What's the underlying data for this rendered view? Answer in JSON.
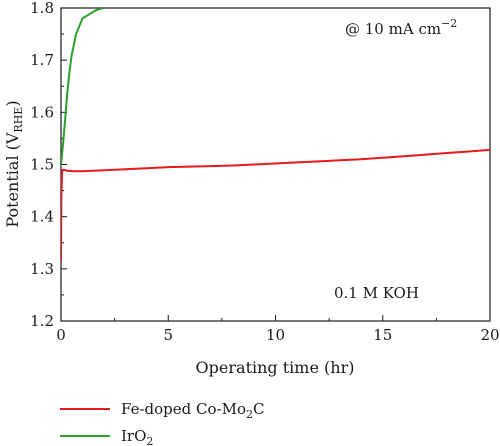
{
  "chart_data": {
    "type": "line",
    "xlabel": "Operating time (hr)",
    "ylabel_main": "Potential (V",
    "ylabel_sub": "RHE",
    "ylabel_close": ")",
    "xlim": [
      0,
      20
    ],
    "ylim": [
      1.2,
      1.8
    ],
    "x_ticks": [
      0,
      5,
      10,
      15,
      20
    ],
    "x_tick_labels": [
      "0",
      "5",
      "10",
      "15",
      "20"
    ],
    "y_ticks": [
      1.2,
      1.3,
      1.4,
      1.5,
      1.6,
      1.7,
      1.8
    ],
    "y_tick_labels": [
      "1.2",
      "1.3",
      "1.4",
      "1.5",
      "1.6",
      "1.7",
      "1.8"
    ],
    "grid": false,
    "legend_position": "below-left",
    "annotation_top": {
      "prefix": "@ 10 mA cm",
      "sup": "−2"
    },
    "annotation_bottom": "0.1 M KOH",
    "series": [
      {
        "name_main": "Fe-doped Co-Mo",
        "name_sub": "2",
        "name_tail": "C",
        "color": "#e41a1c",
        "x": [
          0.0,
          0.02,
          0.05,
          0.1,
          0.3,
          0.6,
          1.0,
          2,
          3,
          4,
          5,
          6,
          7,
          8,
          9,
          10,
          11,
          12,
          13,
          14,
          15,
          16,
          17,
          18,
          19,
          20
        ],
        "y": [
          1.315,
          1.44,
          1.487,
          1.49,
          1.488,
          1.487,
          1.487,
          1.489,
          1.491,
          1.493,
          1.495,
          1.496,
          1.497,
          1.498,
          1.5,
          1.502,
          1.504,
          1.506,
          1.508,
          1.51,
          1.513,
          1.516,
          1.519,
          1.522,
          1.525,
          1.528
        ]
      },
      {
        "name_main": "IrO",
        "name_sub": "2",
        "name_tail": "",
        "color": "#2ca02c",
        "x": [
          0.0,
          0.1,
          0.2,
          0.3,
          0.4,
          0.5,
          0.6,
          0.7,
          0.8,
          0.9,
          1.0,
          1.2,
          1.4,
          1.6,
          1.8,
          2.0
        ],
        "y": [
          1.5,
          1.54,
          1.59,
          1.64,
          1.68,
          1.71,
          1.73,
          1.75,
          1.76,
          1.77,
          1.78,
          1.785,
          1.79,
          1.795,
          1.798,
          1.8
        ]
      }
    ]
  }
}
